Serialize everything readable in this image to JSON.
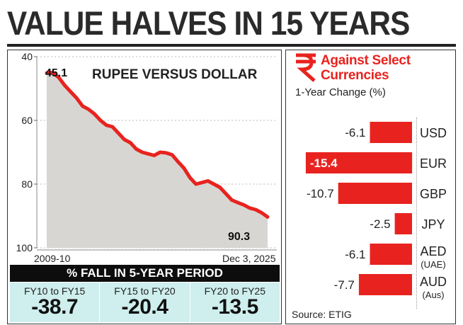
{
  "headline": "VALUE HALVES IN 15 YEARS",
  "chart_data": [
    {
      "type": "area",
      "title": "RUPEE VERSUS DOLLAR",
      "x_start_label": "2009-10",
      "x_end_label": "Dec 3, 2025",
      "ylim": [
        40,
        100
      ],
      "y_inverted": true,
      "yticks": [
        40,
        60,
        80,
        100
      ],
      "series": [
        {
          "name": "Rupee per dollar",
          "values": [
            45.1,
            45.0,
            46.5,
            49.0,
            51.0,
            53.0,
            55.5,
            56.5,
            58.0,
            60.0,
            61.5,
            62.0,
            64.0,
            66.0,
            67.0,
            69.0,
            70.0,
            70.5,
            71.0,
            70.0,
            70.2,
            70.8,
            73.0,
            75.0,
            78.0,
            80.0,
            79.5,
            79.0,
            80.0,
            81.0,
            83.0,
            85.0,
            85.8,
            86.5,
            87.5,
            88.0,
            89.0,
            90.3
          ]
        }
      ],
      "annotations": {
        "start_value": "45.1",
        "end_value": "90.3"
      }
    },
    {
      "type": "bar",
      "orientation": "horizontal",
      "title": "Against Select Currencies",
      "subtitle": "1-Year Change (%)",
      "categories": [
        "USD",
        "EUR",
        "GBP",
        "JPY",
        "AED",
        "AUD"
      ],
      "category_notes": [
        "",
        "",
        "",
        "",
        "(UAE)",
        "(Aus)"
      ],
      "values": [
        -6.1,
        -15.4,
        -10.7,
        -2.5,
        -6.1,
        -7.7
      ],
      "value_labels": [
        "-6.1",
        "-15.4",
        "-10.7",
        "-2.5",
        "-6.1",
        "-7.7"
      ],
      "xlim": [
        -16,
        0
      ],
      "source": "Source:  ETIG"
    }
  ],
  "five_year_fall": {
    "header": "% FALL IN 5-YEAR PERIOD",
    "periods": [
      {
        "label": "FY10 to FY15",
        "value": "-38.7"
      },
      {
        "label": "FY15 to FY20",
        "value": "-20.4"
      },
      {
        "label": "FY20 to FY25",
        "value": "-13.5"
      }
    ]
  },
  "colors": {
    "accent": "#e8231f",
    "area_fill": "#d8d6d2",
    "table_bg": "#cfeeee",
    "header_bg": "#0d0d0d"
  }
}
